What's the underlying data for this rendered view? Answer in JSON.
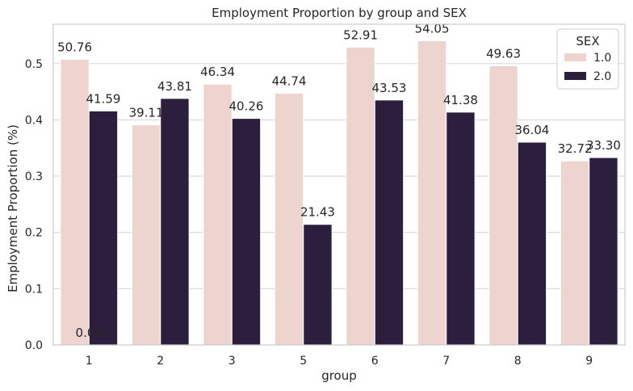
{
  "chart_data": {
    "type": "bar",
    "title": "Employment Proportion by group and SEX",
    "xlabel": "group",
    "ylabel": "Employment Proportion (%)",
    "categories": [
      "1",
      "2",
      "3",
      "5",
      "6",
      "7",
      "8",
      "9"
    ],
    "series": [
      {
        "name": "1.0",
        "color": "#eed4cf",
        "values": [
          0.5076,
          0.3911,
          0.4634,
          0.4474,
          0.5291,
          0.5405,
          0.4963,
          0.3272
        ],
        "labels": [
          "50.76",
          "39.11",
          "46.34",
          "44.74",
          "52.91",
          "54.05",
          "49.63",
          "32.72"
        ]
      },
      {
        "name": "2.0",
        "color": "#2c1e3d",
        "values": [
          0.4159,
          0.4381,
          0.4026,
          0.2143,
          0.4353,
          0.4138,
          0.3604,
          0.333
        ],
        "labels": [
          "41.59",
          "43.81",
          "40.26",
          "21.43",
          "43.53",
          "41.38",
          "36.04",
          "33.30"
        ]
      }
    ],
    "annotations": [
      {
        "text": "0.00",
        "x": "1",
        "y": 0.0
      }
    ],
    "ylim": [
      0,
      0.57
    ],
    "yticks": [
      0.0,
      0.1,
      0.2,
      0.3,
      0.4,
      0.5
    ],
    "ytick_labels": [
      "0.0",
      "0.1",
      "0.2",
      "0.3",
      "0.4",
      "0.5"
    ],
    "grid": true,
    "legend": {
      "title": "SEX",
      "position": "top-right"
    }
  }
}
